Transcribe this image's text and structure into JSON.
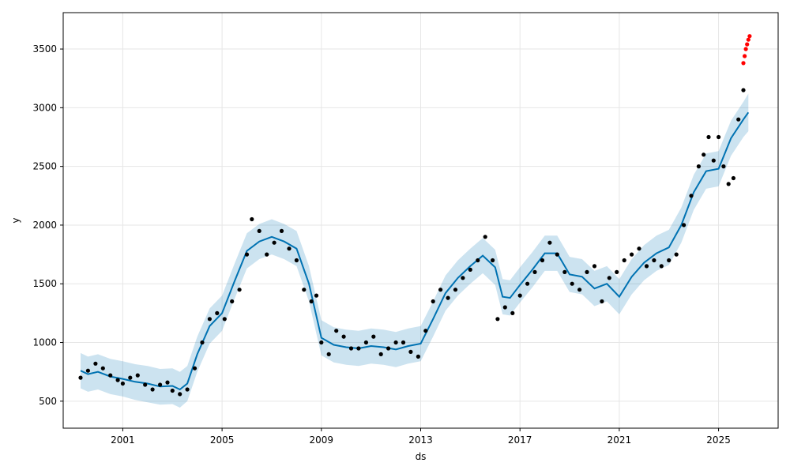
{
  "chart_data": {
    "type": "line",
    "xlabel": "ds",
    "ylabel": "y",
    "xlim": [
      1998.6,
      2027.4
    ],
    "ylim": [
      270,
      3810
    ],
    "grid": true,
    "x_ticks": [
      {
        "value": 2001,
        "label": "2001"
      },
      {
        "value": 2005,
        "label": "2005"
      },
      {
        "value": 2009,
        "label": "2009"
      },
      {
        "value": 2013,
        "label": "2013"
      },
      {
        "value": 2017,
        "label": "2017"
      },
      {
        "value": 2021,
        "label": "2021"
      },
      {
        "value": 2025,
        "label": "2025"
      }
    ],
    "y_ticks": [
      {
        "value": 500,
        "label": "500"
      },
      {
        "value": 1000,
        "label": "1000"
      },
      {
        "value": 1500,
        "label": "1500"
      },
      {
        "value": 2000,
        "label": "2000"
      },
      {
        "value": 2500,
        "label": "2500"
      },
      {
        "value": 3000,
        "label": "3000"
      },
      {
        "value": 3500,
        "label": "3500"
      }
    ],
    "colors": {
      "forecast": "#0072B2",
      "interval": "#0072B2",
      "observed": "#000000",
      "highlight": "#ff0000",
      "grid": "#e6e6e6"
    },
    "forecast": {
      "x": [
        1999.3,
        1999.6,
        2000.0,
        2000.5,
        2001.0,
        2001.5,
        2002.0,
        2002.5,
        2003.0,
        2003.3,
        2003.6,
        2004.0,
        2004.5,
        2005.0,
        2005.5,
        2006.0,
        2006.5,
        2007.0,
        2007.5,
        2008.0,
        2008.5,
        2009.0,
        2009.5,
        2010.0,
        2010.5,
        2011.0,
        2011.5,
        2012.0,
        2012.5,
        2013.0,
        2013.5,
        2014.0,
        2014.5,
        2015.0,
        2015.5,
        2016.0,
        2016.3,
        2016.6,
        2017.0,
        2017.5,
        2018.0,
        2018.5,
        2019.0,
        2019.5,
        2020.0,
        2020.5,
        2021.0,
        2021.5,
        2022.0,
        2022.5,
        2023.0,
        2023.5,
        2024.0,
        2024.5,
        2025.0,
        2025.5,
        2026.0,
        2026.2
      ],
      "y": [
        760,
        730,
        750,
        710,
        690,
        665,
        650,
        625,
        630,
        600,
        650,
        900,
        1140,
        1250,
        1520,
        1780,
        1860,
        1900,
        1860,
        1800,
        1500,
        1040,
        980,
        960,
        950,
        970,
        960,
        940,
        970,
        990,
        1200,
        1420,
        1550,
        1650,
        1740,
        1640,
        1390,
        1380,
        1490,
        1620,
        1760,
        1760,
        1580,
        1560,
        1460,
        1500,
        1390,
        1560,
        1680,
        1760,
        1810,
        2000,
        2280,
        2460,
        2480,
        2740,
        2900,
        2960
      ],
      "lower": [
        610,
        580,
        600,
        560,
        540,
        510,
        490,
        470,
        475,
        445,
        500,
        750,
        990,
        1100,
        1370,
        1630,
        1710,
        1750,
        1710,
        1650,
        1350,
        890,
        830,
        810,
        800,
        820,
        810,
        790,
        820,
        840,
        1050,
        1270,
        1400,
        1500,
        1590,
        1490,
        1240,
        1230,
        1340,
        1470,
        1610,
        1610,
        1430,
        1410,
        1310,
        1350,
        1240,
        1410,
        1530,
        1610,
        1660,
        1850,
        2130,
        2310,
        2330,
        2590,
        2750,
        2800
      ],
      "upper": [
        910,
        880,
        900,
        860,
        840,
        815,
        800,
        775,
        780,
        750,
        800,
        1050,
        1290,
        1400,
        1670,
        1930,
        2010,
        2050,
        2010,
        1950,
        1650,
        1190,
        1130,
        1110,
        1100,
        1120,
        1110,
        1090,
        1120,
        1140,
        1350,
        1570,
        1700,
        1800,
        1890,
        1790,
        1540,
        1530,
        1640,
        1770,
        1910,
        1910,
        1730,
        1710,
        1610,
        1650,
        1540,
        1710,
        1830,
        1910,
        1960,
        2150,
        2430,
        2610,
        2630,
        2890,
        3050,
        3120
      ]
    },
    "observed": {
      "x": [
        1999.3,
        1999.6,
        1999.9,
        2000.2,
        2000.5,
        2000.8,
        2001.0,
        2001.3,
        2001.6,
        2001.9,
        2002.2,
        2002.5,
        2002.8,
        2003.0,
        2003.3,
        2003.6,
        2003.9,
        2004.2,
        2004.5,
        2004.8,
        2005.1,
        2005.4,
        2005.7,
        2006.0,
        2006.2,
        2006.5,
        2006.8,
        2007.1,
        2007.4,
        2007.7,
        2008.0,
        2008.3,
        2008.6,
        2008.8,
        2009.0,
        2009.3,
        2009.6,
        2009.9,
        2010.2,
        2010.5,
        2010.8,
        2011.1,
        2011.4,
        2011.7,
        2012.0,
        2012.3,
        2012.6,
        2012.9,
        2013.2,
        2013.5,
        2013.8,
        2014.1,
        2014.4,
        2014.7,
        2015.0,
        2015.3,
        2015.6,
        2015.9,
        2016.1,
        2016.4,
        2016.7,
        2017.0,
        2017.3,
        2017.6,
        2017.9,
        2018.2,
        2018.5,
        2018.8,
        2019.1,
        2019.4,
        2019.7,
        2020.0,
        2020.3,
        2020.6,
        2020.9,
        2021.2,
        2021.5,
        2021.8,
        2022.1,
        2022.4,
        2022.7,
        2023.0,
        2023.3,
        2023.6,
        2023.9,
        2024.2,
        2024.4,
        2024.6,
        2024.8,
        2025.0,
        2025.2,
        2025.4,
        2025.6,
        2025.8,
        2026.0
      ],
      "y": [
        700,
        760,
        820,
        780,
        720,
        680,
        650,
        700,
        720,
        640,
        600,
        640,
        660,
        590,
        560,
        600,
        780,
        1000,
        1200,
        1250,
        1200,
        1350,
        1450,
        1750,
        2050,
        1950,
        1750,
        1850,
        1950,
        1800,
        1700,
        1450,
        1350,
        1400,
        1000,
        900,
        1100,
        1050,
        950,
        950,
        1000,
        1050,
        900,
        950,
        1000,
        1000,
        920,
        880,
        1100,
        1350,
        1450,
        1380,
        1450,
        1550,
        1620,
        1700,
        1900,
        1700,
        1200,
        1300,
        1250,
        1400,
        1500,
        1600,
        1700,
        1850,
        1750,
        1600,
        1500,
        1450,
        1600,
        1650,
        1350,
        1550,
        1600,
        1700,
        1750,
        1800,
        1650,
        1700,
        1650,
        1700,
        1750,
        2000,
        2250,
        2500,
        2600,
        2750,
        2550,
        2750,
        2500,
        2350,
        2400,
        2900,
        3150
      ]
    },
    "highlighted": {
      "x": [
        2026.0,
        2026.05,
        2026.1,
        2026.15,
        2026.2,
        2026.25
      ],
      "y": [
        3380,
        3440,
        3500,
        3540,
        3580,
        3610
      ]
    }
  }
}
